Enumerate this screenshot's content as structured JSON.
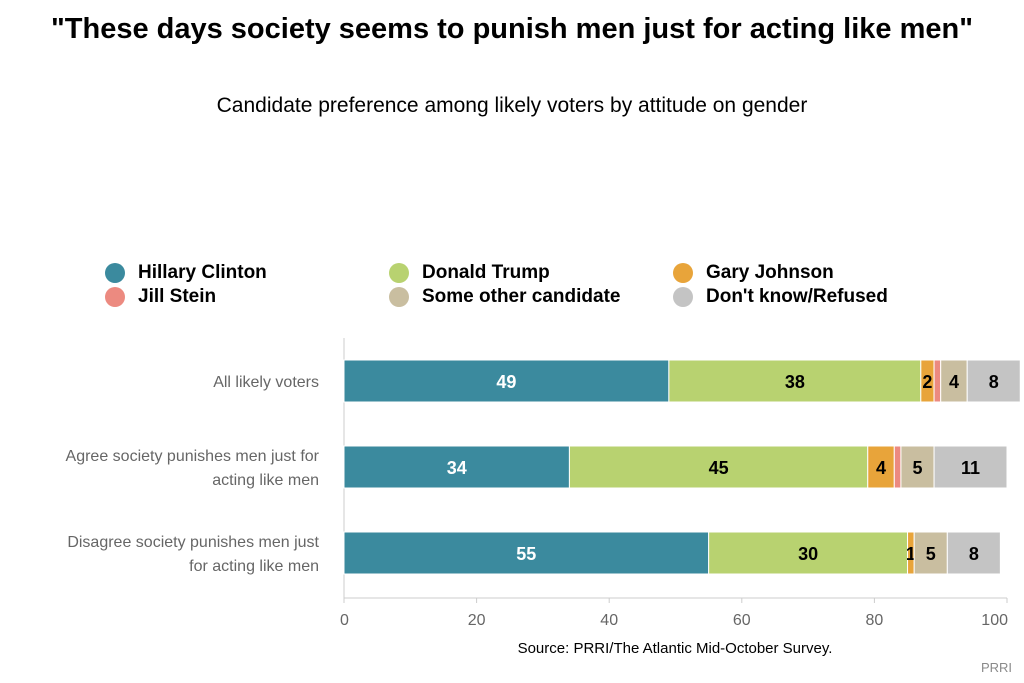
{
  "title": "\"These days society seems to punish men just for acting like men\"",
  "subtitle": "Candidate preference among likely voters by attitude on gender",
  "source": "Source: PRRI/The Atlantic Mid-October Survey.",
  "credit": "PRRI",
  "colors": {
    "Hillary Clinton": "#3b8a9e",
    "Donald Trump": "#b8d270",
    "Gary Johnson": "#e8a43a",
    "Jill Stein": "#ec8a80",
    "Some other candidate": "#c9bea0",
    "Don't know/Refused": "#c4c4c4"
  },
  "chart_data": {
    "type": "bar",
    "orientation": "horizontal",
    "stacked": true,
    "categories": [
      "All likely voters",
      "Agree society punishes men just for acting like men",
      "Disagree society punishes men just for acting like men"
    ],
    "category_label_lines": [
      [
        "All likely voters"
      ],
      [
        "Agree society punishes men just for",
        "acting like men"
      ],
      [
        "Disagree society punishes men just",
        "for acting like men"
      ]
    ],
    "series": [
      {
        "name": "Hillary Clinton",
        "values": [
          49,
          34,
          55
        ],
        "labels": [
          "49",
          "34",
          "55"
        ]
      },
      {
        "name": "Donald Trump",
        "values": [
          38,
          45,
          30
        ],
        "labels": [
          "38",
          "45",
          "30"
        ]
      },
      {
        "name": "Gary Johnson",
        "values": [
          2,
          4,
          1
        ],
        "labels": [
          "2",
          "4",
          "1"
        ]
      },
      {
        "name": "Jill Stein",
        "values": [
          1,
          1,
          0
        ],
        "labels": [
          "",
          "",
          ""
        ]
      },
      {
        "name": "Some other candidate",
        "values": [
          4,
          5,
          5
        ],
        "labels": [
          "4",
          "5",
          "5"
        ]
      },
      {
        "name": "Don't know/Refused",
        "values": [
          8,
          11,
          8
        ],
        "labels": [
          "8",
          "11",
          "8"
        ]
      }
    ],
    "xlim": [
      0,
      100
    ],
    "xticks": [
      0,
      20,
      40,
      60,
      80,
      100
    ],
    "legend": "top",
    "grid": false
  }
}
